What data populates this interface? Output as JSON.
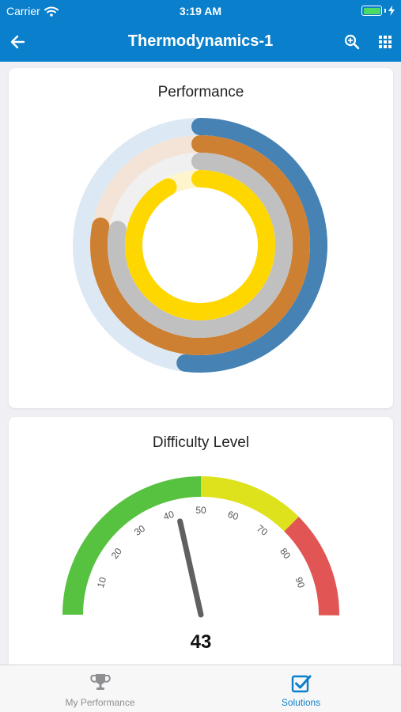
{
  "status_bar": {
    "carrier": "Carrier",
    "time": "3:19 AM",
    "battery_percent": 100
  },
  "nav": {
    "title": "Thermodynamics-1",
    "back_icon": "arrow-left-icon",
    "search_icon": "zoom-in-icon",
    "menu_icon": "grid-icon"
  },
  "performance_card": {
    "title": "Performance",
    "chart_data": {
      "type": "radial-bar",
      "title": "Performance",
      "max": 100,
      "series": [
        {
          "value": 52,
          "color": "#4682b4",
          "track": "#dce8f3"
        },
        {
          "value": 78,
          "color": "#cd7f32",
          "track": "#f4e4d8"
        },
        {
          "value": 78,
          "color": "#c0c0c0",
          "track": "#f0f0f0"
        },
        {
          "value": 92,
          "color": "#ffd700",
          "track": "#fff5cc"
        }
      ]
    }
  },
  "difficulty_card": {
    "title": "Difficulty Level",
    "chart_data": {
      "type": "gauge",
      "title": "Difficulty Level",
      "min": 0,
      "max": 100,
      "value": 43,
      "value_label": "43",
      "ticks": [
        "10",
        "20",
        "30",
        "40",
        "50",
        "60",
        "70",
        "80",
        "90"
      ],
      "bands": [
        {
          "from": 0,
          "to": 50,
          "color": "#57c23f"
        },
        {
          "from": 50,
          "to": 75,
          "color": "#dde21c"
        },
        {
          "from": 75,
          "to": 100,
          "color": "#e25555"
        }
      ]
    }
  },
  "tab_bar": {
    "items": [
      {
        "label": "My Performance",
        "icon": "trophy-icon",
        "active": false
      },
      {
        "label": "Solutions",
        "icon": "checkbox-icon",
        "active": true
      }
    ]
  }
}
